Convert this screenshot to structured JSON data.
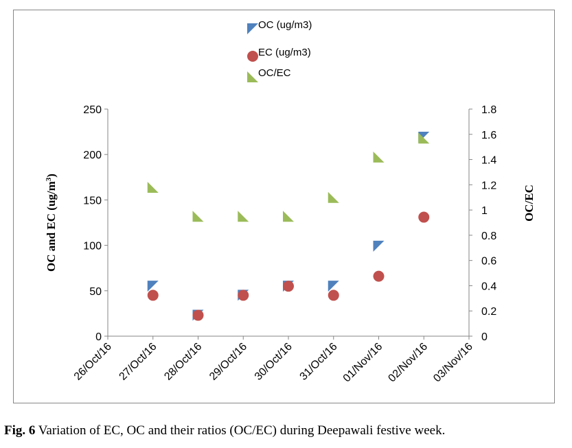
{
  "figure": {
    "caption_label": "Fig. 6",
    "caption_text": " Variation of EC, OC and their ratios (OC/EC) during Deepawali festive week."
  },
  "colors": {
    "oc": "#4F81BD",
    "ec": "#C0504D",
    "ratio": "#9BBB59",
    "axis": "#868686",
    "frame": "#868686"
  },
  "chart_data": {
    "type": "scatter",
    "title": "",
    "x_categories": [
      "26/Oct/16",
      "27/Oct/16",
      "28/Oct/16",
      "29/Oct/16",
      "30/Oct/16",
      "31/Oct/16",
      "01/Nov/16",
      "02/Nov/16",
      "03/Nov/16"
    ],
    "ylabel_left": "OC and EC (ug/m3)",
    "ylabel_right": "OC/EC",
    "ylim_left": [
      0,
      250
    ],
    "yticks_left": [
      "0",
      "50",
      "100",
      "150",
      "200",
      "250"
    ],
    "ylim_right": [
      0,
      1.8
    ],
    "yticks_right": [
      "0",
      "0.2",
      "0.4",
      "0.6",
      "0.8",
      "1",
      "1.2",
      "1.4",
      "1.6",
      "1.8"
    ],
    "grid": false,
    "legend_position": "top",
    "series": [
      {
        "name": "OC  (ug/m3)",
        "axis": "left",
        "marker": "triangle-blue",
        "x": [
          "27/Oct/16",
          "28/Oct/16",
          "29/Oct/16",
          "30/Oct/16",
          "31/Oct/16",
          "01/Nov/16",
          "02/Nov/16"
        ],
        "values": [
          55,
          23,
          45,
          55,
          55,
          99,
          219
        ]
      },
      {
        "name": "EC (ug/m3)",
        "axis": "left",
        "marker": "circle-red",
        "x": [
          "27/Oct/16",
          "28/Oct/16",
          "29/Oct/16",
          "30/Oct/16",
          "31/Oct/16",
          "01/Nov/16",
          "02/Nov/16"
        ],
        "values": [
          45,
          23,
          45,
          55,
          45,
          66,
          131
        ]
      },
      {
        "name": "OC/EC",
        "axis": "right",
        "marker": "triangle-green",
        "x": [
          "27/Oct/16",
          "28/Oct/16",
          "29/Oct/16",
          "30/Oct/16",
          "31/Oct/16",
          "01/Nov/16",
          "02/Nov/16"
        ],
        "values": [
          1.18,
          0.95,
          0.95,
          0.95,
          1.1,
          1.42,
          1.57
        ]
      }
    ]
  }
}
